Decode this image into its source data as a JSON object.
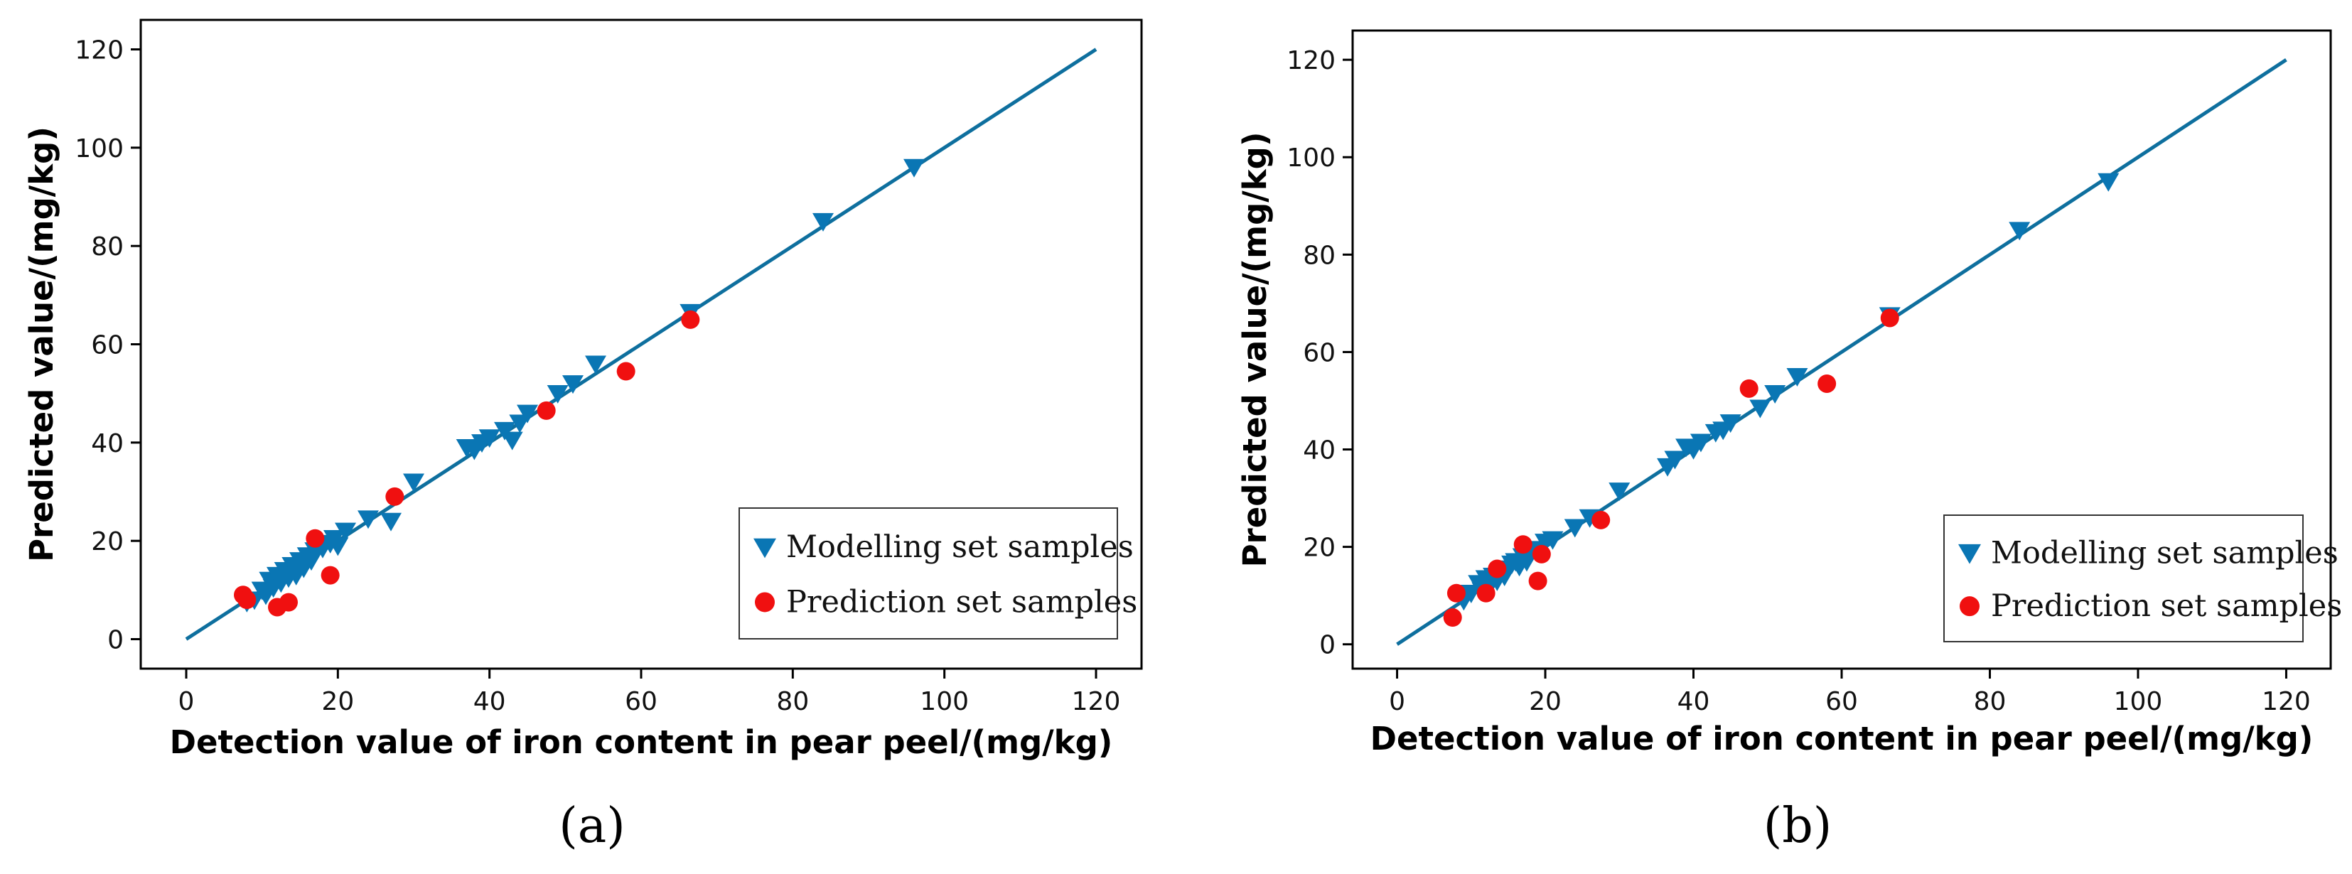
{
  "colors": {
    "modelling": "#0a76b4",
    "prediction": "#f01010",
    "fit_line": "#0e6f9e",
    "axes": "#000000"
  },
  "legend": {
    "placement": "bottom-right",
    "modelling_label": "Modelling set samples",
    "prediction_label": "Prediction set samples"
  },
  "chart_data": [
    {
      "type": "scatter",
      "panel_label": "(a)",
      "xlabel": "Detection value of iron content in pear peel/(mg/kg)",
      "ylabel": "Predicted value/(mg/kg)",
      "xlim": [
        -6,
        126
      ],
      "ylim": [
        -6,
        126
      ],
      "xticks": [
        0,
        20,
        40,
        60,
        80,
        100,
        120
      ],
      "yticks": [
        0,
        20,
        40,
        60,
        80,
        100,
        120
      ],
      "grid": false,
      "fit_line": [
        [
          0,
          0
        ],
        [
          120,
          120
        ]
      ],
      "series": [
        {
          "name": "Modelling set samples",
          "marker": "triangle-down",
          "points": [
            [
              8,
              7.5
            ],
            [
              9,
              8
            ],
            [
              10,
              10
            ],
            [
              10.5,
              9
            ],
            [
              11,
              12
            ],
            [
              11.5,
              10.5
            ],
            [
              12,
              13
            ],
            [
              12.5,
              11.5
            ],
            [
              13,
              14
            ],
            [
              13.5,
              12.5
            ],
            [
              14,
              15
            ],
            [
              14.5,
              13
            ],
            [
              15,
              16
            ],
            [
              15.5,
              14.5
            ],
            [
              16,
              17
            ],
            [
              16.5,
              16
            ],
            [
              17,
              18
            ],
            [
              17.5,
              19
            ],
            [
              18,
              18.5
            ],
            [
              19,
              19.5
            ],
            [
              19.5,
              20.5
            ],
            [
              20,
              19
            ],
            [
              21,
              22
            ],
            [
              24,
              24.5
            ],
            [
              27,
              24
            ],
            [
              30,
              32
            ],
            [
              37,
              39
            ],
            [
              38,
              38.5
            ],
            [
              39,
              40
            ],
            [
              40,
              41
            ],
            [
              42,
              42.5
            ],
            [
              43,
              40.5
            ],
            [
              44,
              44
            ],
            [
              45,
              46
            ],
            [
              49,
              50
            ],
            [
              51,
              52
            ],
            [
              54,
              56
            ],
            [
              66.5,
              66.5
            ],
            [
              84,
              85
            ],
            [
              96,
              96
            ]
          ]
        },
        {
          "name": "Prediction set samples",
          "marker": "circle",
          "points": [
            [
              7.5,
              9
            ],
            [
              8,
              8
            ],
            [
              12,
              6.5
            ],
            [
              13.5,
              7.5
            ],
            [
              17,
              20.5
            ],
            [
              19,
              13
            ],
            [
              27.5,
              29
            ],
            [
              47.5,
              46.5
            ],
            [
              58,
              54.5
            ],
            [
              66.5,
              65
            ]
          ]
        }
      ]
    },
    {
      "type": "scatter",
      "panel_label": "(b)",
      "xlabel": "Detection value of iron content in pear peel/(mg/kg)",
      "ylabel": "Predicted value/(mg/kg)",
      "xlim": [
        -6,
        126
      ],
      "ylim": [
        -5,
        126
      ],
      "xticks": [
        0,
        20,
        40,
        60,
        80,
        100,
        120
      ],
      "yticks": [
        0,
        20,
        40,
        60,
        80,
        100,
        120
      ],
      "grid": false,
      "fit_line": [
        [
          0,
          0
        ],
        [
          120,
          120
        ]
      ],
      "series": [
        {
          "name": "Modelling set samples",
          "marker": "triangle-down",
          "points": [
            [
              9,
              9
            ],
            [
              10,
              10.5
            ],
            [
              11,
              12.5
            ],
            [
              11.5,
              11
            ],
            [
              12,
              13.5
            ],
            [
              12.5,
              12
            ],
            [
              13,
              14
            ],
            [
              13.5,
              13
            ],
            [
              14,
              15
            ],
            [
              14.5,
              14
            ],
            [
              15,
              15.5
            ],
            [
              15.5,
              16.5
            ],
            [
              16,
              17
            ],
            [
              16.5,
              16
            ],
            [
              17,
              18
            ],
            [
              17.5,
              17
            ],
            [
              18,
              19
            ],
            [
              19,
              19.5
            ],
            [
              20,
              21
            ],
            [
              21,
              21.5
            ],
            [
              24,
              24
            ],
            [
              26,
              26
            ],
            [
              30,
              31.5
            ],
            [
              36.5,
              36.5
            ],
            [
              37.5,
              38
            ],
            [
              39,
              40.5
            ],
            [
              40,
              40
            ],
            [
              41,
              41.5
            ],
            [
              43,
              43.5
            ],
            [
              44,
              44
            ],
            [
              45,
              45.5
            ],
            [
              49,
              48.5
            ],
            [
              51,
              51.5
            ],
            [
              54,
              55
            ],
            [
              66.5,
              67.5
            ],
            [
              84,
              85
            ],
            [
              96,
              95
            ]
          ]
        },
        {
          "name": "Prediction set samples",
          "marker": "circle",
          "points": [
            [
              7.5,
              5.5
            ],
            [
              8,
              10.5
            ],
            [
              12,
              10.5
            ],
            [
              13.5,
              15.5
            ],
            [
              17,
              20.5
            ],
            [
              19,
              13
            ],
            [
              19.5,
              18.5
            ],
            [
              27.5,
              25.5
            ],
            [
              47.5,
              52.5
            ],
            [
              58,
              53.5
            ],
            [
              66.5,
              67
            ]
          ]
        }
      ]
    }
  ]
}
